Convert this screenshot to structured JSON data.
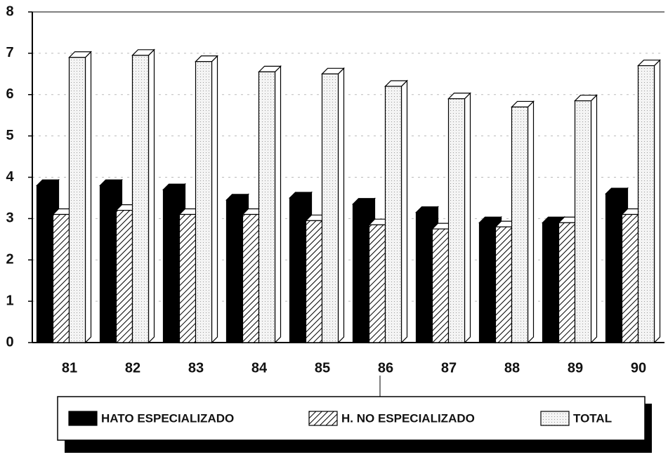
{
  "chart_data": {
    "type": "bar",
    "categories": [
      "81",
      "82",
      "83",
      "84",
      "85",
      "86",
      "87",
      "88",
      "89",
      "90"
    ],
    "series": [
      {
        "name": "HATO ESPECIALIZADO",
        "color": "#000000",
        "values": [
          3.8,
          3.8,
          3.7,
          3.45,
          3.5,
          3.35,
          3.15,
          2.9,
          2.9,
          3.6
        ]
      },
      {
        "name": "H. NO ESPECIALIZADO",
        "color": "#ffffff",
        "pattern": "hatch",
        "values": [
          3.1,
          3.2,
          3.1,
          3.1,
          2.95,
          2.85,
          2.75,
          2.8,
          2.9,
          3.1
        ]
      },
      {
        "name": "TOTAL",
        "color": "#f2f2f2",
        "pattern": "dots",
        "values": [
          6.9,
          6.95,
          6.8,
          6.55,
          6.5,
          6.2,
          5.9,
          5.7,
          5.85,
          6.7
        ]
      }
    ],
    "ylim": [
      0,
      8
    ],
    "yticks": [
      0,
      1,
      2,
      3,
      4,
      5,
      6,
      7,
      8
    ],
    "grid": true,
    "legend": "bottom"
  }
}
